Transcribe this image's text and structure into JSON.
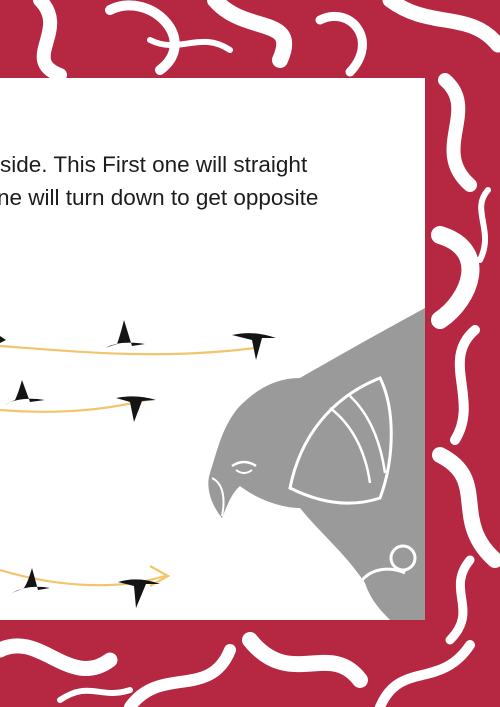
{
  "page": {
    "colors": {
      "border_red": "#b62841",
      "swirl_white": "#ffffff",
      "text": "#1d1d1d",
      "bird_black": "#141414",
      "flight_path": "#f2c56b",
      "eagle_gray": "#9a9a9a"
    },
    "text_lines": [
      "side. This First one will straight",
      "ne will turn down to get opposite",
      "."
    ],
    "illustration": {
      "flight_path_count": 3,
      "icons": [
        "bird-silhouette-icon",
        "eagle-figure-icon"
      ]
    }
  }
}
